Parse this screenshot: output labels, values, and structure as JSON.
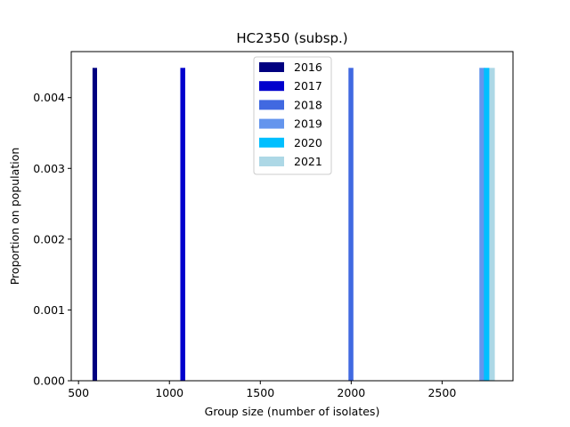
{
  "chart_data": {
    "type": "bar",
    "title": "HC2350 (subsp.)",
    "xlabel": "Group size (number of isolates)",
    "ylabel": "Proportion on population",
    "xlim": [
      460,
      2890
    ],
    "ylim": [
      0,
      0.00465
    ],
    "xticks": [
      500,
      1000,
      1500,
      2000,
      2500
    ],
    "xtick_labels": [
      "500",
      "1000",
      "1500",
      "2000",
      "2500"
    ],
    "yticks": [
      0,
      0.001,
      0.002,
      0.003,
      0.004
    ],
    "ytick_labels": [
      "0.000",
      "0.001",
      "0.002",
      "0.003",
      "0.004"
    ],
    "legend_position": "top-center",
    "grid": false,
    "series": [
      {
        "name": "2016",
        "color": "#000080",
        "bars": [
          {
            "x_start": 577,
            "x_end": 602,
            "value": 0.00442
          }
        ]
      },
      {
        "name": "2017",
        "color": "#0000cd",
        "bars": [
          {
            "x_start": 1060,
            "x_end": 1087,
            "value": 0.00442
          }
        ]
      },
      {
        "name": "2018",
        "color": "#4169e1",
        "bars": [
          {
            "x_start": 1985,
            "x_end": 2012,
            "value": 0.00442
          }
        ]
      },
      {
        "name": "2019",
        "color": "#6495ed",
        "bars": [
          {
            "x_start": 2705,
            "x_end": 2735,
            "value": 0.00442
          }
        ]
      },
      {
        "name": "2020",
        "color": "#00bfff",
        "bars": [
          {
            "x_start": 2730,
            "x_end": 2760,
            "value": 0.00442
          }
        ]
      },
      {
        "name": "2021",
        "color": "#add8e6",
        "bars": [
          {
            "x_start": 2760,
            "x_end": 2790,
            "value": 0.00442
          }
        ]
      }
    ]
  }
}
